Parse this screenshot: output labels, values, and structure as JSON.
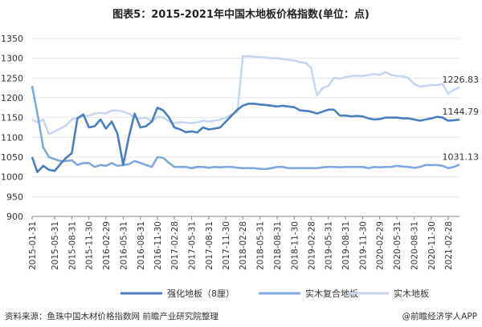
{
  "title": "图表5：2015-2021年中国木地板价格指数(单位：点)",
  "source": "资料来源：鱼珠中国木材价格指数网 前瞻产业研究院整理",
  "credit": "@前瞻经济学人APP",
  "colors": {
    "strong": "#4a7ec0",
    "composite": "#7fa8dc",
    "solid": "#c6d7ef",
    "grid": "#e6e6e6",
    "axis": "#888888"
  },
  "chart_data": {
    "type": "line",
    "title": "图表5：2015-2021年中国木地板价格指数(单位：点)",
    "ylim": [
      900,
      1350
    ],
    "yticks": [
      900,
      950,
      1000,
      1050,
      1100,
      1150,
      1200,
      1250,
      1300,
      1350
    ],
    "xrange": [
      "2015-01-31",
      "2021-04-30"
    ],
    "xticks": [
      "2015-01-31",
      "2015-05-31",
      "2015-08-31",
      "2015-11-30",
      "2016-02-29",
      "2016-05-31",
      "2016-08-31",
      "2016-11-30",
      "2017-02-28",
      "2017-05-31",
      "2017-08-31",
      "2017-11-30",
      "2018-02-28",
      "2018-05-31",
      "2018-08-31",
      "2018-11-30",
      "2019-02-28",
      "2019-05-31",
      "2019-08-31",
      "2019-11-30",
      "2020-02-29",
      "2020-05-31",
      "2020-08-31",
      "2020-11-30",
      "2021-02-28"
    ],
    "legend_position": "bottom",
    "series": [
      {
        "name": "强化地板（8厘）",
        "end_label": "1144.79",
        "points": [
          [
            "2015-01-31",
            1050
          ],
          [
            "2015-02-28",
            1012
          ],
          [
            "2015-03-31",
            1028
          ],
          [
            "2015-04-30",
            1018
          ],
          [
            "2015-05-31",
            1015
          ],
          [
            "2015-06-30",
            1032
          ],
          [
            "2015-07-31",
            1048
          ],
          [
            "2015-08-31",
            1060
          ],
          [
            "2015-09-30",
            1148
          ],
          [
            "2015-10-31",
            1158
          ],
          [
            "2015-11-30",
            1125
          ],
          [
            "2015-12-31",
            1128
          ],
          [
            "2016-01-31",
            1145
          ],
          [
            "2016-02-29",
            1122
          ],
          [
            "2016-03-31",
            1140
          ],
          [
            "2016-04-30",
            1110
          ],
          [
            "2016-05-31",
            1030
          ],
          [
            "2016-06-30",
            1100
          ],
          [
            "2016-07-31",
            1160
          ],
          [
            "2016-08-31",
            1125
          ],
          [
            "2016-09-30",
            1128
          ],
          [
            "2016-10-31",
            1140
          ],
          [
            "2016-11-30",
            1175
          ],
          [
            "2016-12-31",
            1168
          ],
          [
            "2017-01-31",
            1150
          ],
          [
            "2017-02-28",
            1125
          ],
          [
            "2017-03-31",
            1120
          ],
          [
            "2017-04-30",
            1113
          ],
          [
            "2017-05-31",
            1115
          ],
          [
            "2017-06-30",
            1112
          ],
          [
            "2017-07-31",
            1125
          ],
          [
            "2017-08-31",
            1120
          ],
          [
            "2017-09-30",
            1122
          ],
          [
            "2017-10-31",
            1125
          ],
          [
            "2017-11-30",
            1140
          ],
          [
            "2017-12-31",
            1155
          ],
          [
            "2018-01-31",
            1170
          ],
          [
            "2018-02-28",
            1180
          ],
          [
            "2018-03-31",
            1185
          ],
          [
            "2018-04-30",
            1185
          ],
          [
            "2018-05-31",
            1183
          ],
          [
            "2018-06-30",
            1182
          ],
          [
            "2018-07-31",
            1180
          ],
          [
            "2018-08-31",
            1178
          ],
          [
            "2018-09-30",
            1180
          ],
          [
            "2018-10-31",
            1178
          ],
          [
            "2018-11-30",
            1176
          ],
          [
            "2018-12-31",
            1168
          ],
          [
            "2019-01-31",
            1167
          ],
          [
            "2019-02-28",
            1165
          ],
          [
            "2019-03-31",
            1160
          ],
          [
            "2019-04-30",
            1165
          ],
          [
            "2019-05-31",
            1170
          ],
          [
            "2019-06-30",
            1170
          ],
          [
            "2019-07-31",
            1155
          ],
          [
            "2019-08-31",
            1155
          ],
          [
            "2019-09-30",
            1153
          ],
          [
            "2019-10-31",
            1154
          ],
          [
            "2019-11-30",
            1153
          ],
          [
            "2019-12-31",
            1148
          ],
          [
            "2020-01-31",
            1145
          ],
          [
            "2020-02-29",
            1146
          ],
          [
            "2020-03-31",
            1150
          ],
          [
            "2020-04-30",
            1150
          ],
          [
            "2020-05-31",
            1150
          ],
          [
            "2020-06-30",
            1148
          ],
          [
            "2020-07-31",
            1148
          ],
          [
            "2020-08-31",
            1145
          ],
          [
            "2020-09-30",
            1142
          ],
          [
            "2020-10-31",
            1145
          ],
          [
            "2020-11-30",
            1148
          ],
          [
            "2020-12-31",
            1152
          ],
          [
            "2021-01-31",
            1150
          ],
          [
            "2021-02-28",
            1142
          ],
          [
            "2021-03-31",
            1143
          ],
          [
            "2021-04-30",
            1144.79
          ]
        ]
      },
      {
        "name": "实木复合地板",
        "end_label": "1031.13",
        "points": [
          [
            "2015-01-31",
            1230
          ],
          [
            "2015-02-28",
            1160
          ],
          [
            "2015-03-31",
            1075
          ],
          [
            "2015-04-30",
            1050
          ],
          [
            "2015-05-31",
            1045
          ],
          [
            "2015-06-30",
            1040
          ],
          [
            "2015-07-31",
            1040
          ],
          [
            "2015-08-31",
            1042
          ],
          [
            "2015-09-30",
            1030
          ],
          [
            "2015-10-31",
            1035
          ],
          [
            "2015-11-30",
            1035
          ],
          [
            "2015-12-31",
            1025
          ],
          [
            "2016-01-31",
            1030
          ],
          [
            "2016-02-29",
            1028
          ],
          [
            "2016-03-31",
            1035
          ],
          [
            "2016-04-30",
            1028
          ],
          [
            "2016-05-31",
            1030
          ],
          [
            "2016-06-30",
            1032
          ],
          [
            "2016-07-31",
            1040
          ],
          [
            "2016-08-31",
            1035
          ],
          [
            "2016-09-30",
            1030
          ],
          [
            "2016-10-31",
            1025
          ],
          [
            "2016-11-30",
            1050
          ],
          [
            "2016-12-31",
            1048
          ],
          [
            "2017-01-31",
            1035
          ],
          [
            "2017-02-28",
            1025
          ],
          [
            "2017-03-31",
            1025
          ],
          [
            "2017-04-30",
            1025
          ],
          [
            "2017-05-31",
            1022
          ],
          [
            "2017-06-30",
            1025
          ],
          [
            "2017-07-31",
            1025
          ],
          [
            "2017-08-31",
            1023
          ],
          [
            "2017-09-30",
            1025
          ],
          [
            "2017-10-31",
            1024
          ],
          [
            "2017-11-30",
            1025
          ],
          [
            "2017-12-31",
            1025
          ],
          [
            "2018-01-31",
            1023
          ],
          [
            "2018-02-28",
            1022
          ],
          [
            "2018-03-31",
            1022
          ],
          [
            "2018-04-30",
            1022
          ],
          [
            "2018-05-31",
            1020
          ],
          [
            "2018-06-30",
            1020
          ],
          [
            "2018-07-31",
            1022
          ],
          [
            "2018-08-31",
            1025
          ],
          [
            "2018-09-30",
            1025
          ],
          [
            "2018-10-31",
            1022
          ],
          [
            "2018-11-30",
            1022
          ],
          [
            "2018-12-31",
            1022
          ],
          [
            "2019-01-31",
            1022
          ],
          [
            "2019-02-28",
            1022
          ],
          [
            "2019-03-31",
            1022
          ],
          [
            "2019-04-30",
            1024
          ],
          [
            "2019-05-31",
            1025
          ],
          [
            "2019-06-30",
            1025
          ],
          [
            "2019-07-31",
            1024
          ],
          [
            "2019-08-31",
            1025
          ],
          [
            "2019-09-30",
            1025
          ],
          [
            "2019-10-31",
            1025
          ],
          [
            "2019-11-30",
            1025
          ],
          [
            "2019-12-31",
            1022
          ],
          [
            "2020-01-31",
            1025
          ],
          [
            "2020-02-29",
            1024
          ],
          [
            "2020-03-31",
            1025
          ],
          [
            "2020-04-30",
            1025
          ],
          [
            "2020-05-31",
            1028
          ],
          [
            "2020-06-30",
            1026
          ],
          [
            "2020-07-31",
            1025
          ],
          [
            "2020-08-31",
            1023
          ],
          [
            "2020-09-30",
            1025
          ],
          [
            "2020-10-31",
            1030
          ],
          [
            "2020-11-30",
            1030
          ],
          [
            "2020-12-31",
            1030
          ],
          [
            "2021-01-31",
            1028
          ],
          [
            "2021-02-28",
            1022
          ],
          [
            "2021-03-31",
            1025
          ],
          [
            "2021-04-30",
            1031.13
          ]
        ]
      },
      {
        "name": "实木地板",
        "end_label": "1226.83",
        "points": [
          [
            "2015-01-31",
            1145
          ],
          [
            "2015-02-28",
            1138
          ],
          [
            "2015-03-31",
            1145
          ],
          [
            "2015-04-30",
            1108
          ],
          [
            "2015-05-31",
            1115
          ],
          [
            "2015-06-30",
            1122
          ],
          [
            "2015-07-31",
            1130
          ],
          [
            "2015-08-31",
            1145
          ],
          [
            "2015-09-30",
            1150
          ],
          [
            "2015-10-31",
            1152
          ],
          [
            "2015-11-30",
            1155
          ],
          [
            "2015-12-31",
            1160
          ],
          [
            "2016-01-31",
            1162
          ],
          [
            "2016-02-29",
            1160
          ],
          [
            "2016-03-31",
            1168
          ],
          [
            "2016-04-30",
            1168
          ],
          [
            "2016-05-31",
            1165
          ],
          [
            "2016-06-30",
            1160
          ],
          [
            "2016-07-31",
            1150
          ],
          [
            "2016-08-31",
            1148
          ],
          [
            "2016-09-30",
            1150
          ],
          [
            "2016-10-31",
            1140
          ],
          [
            "2016-11-30",
            1152
          ],
          [
            "2016-12-31",
            1150
          ],
          [
            "2017-01-31",
            1140
          ],
          [
            "2017-02-28",
            1136
          ],
          [
            "2017-03-31",
            1138
          ],
          [
            "2017-04-30",
            1137
          ],
          [
            "2017-05-31",
            1136
          ],
          [
            "2017-06-30",
            1138
          ],
          [
            "2017-07-31",
            1142
          ],
          [
            "2017-08-31",
            1140
          ],
          [
            "2017-09-30",
            1142
          ],
          [
            "2017-10-31",
            1145
          ],
          [
            "2017-11-30",
            1150
          ],
          [
            "2017-12-31",
            1158
          ],
          [
            "2018-01-31",
            1165
          ],
          [
            "2018-02-28",
            1305
          ],
          [
            "2018-03-31",
            1305
          ],
          [
            "2018-04-30",
            1304
          ],
          [
            "2018-05-31",
            1303
          ],
          [
            "2018-06-30",
            1302
          ],
          [
            "2018-07-31",
            1300
          ],
          [
            "2018-08-31",
            1300
          ],
          [
            "2018-09-30",
            1298
          ],
          [
            "2018-10-31",
            1296
          ],
          [
            "2018-11-30",
            1294
          ],
          [
            "2018-12-31",
            1290
          ],
          [
            "2019-01-31",
            1288
          ],
          [
            "2019-02-28",
            1275
          ],
          [
            "2019-03-31",
            1205
          ],
          [
            "2019-04-30",
            1225
          ],
          [
            "2019-05-31",
            1230
          ],
          [
            "2019-06-30",
            1250
          ],
          [
            "2019-07-31",
            1248
          ],
          [
            "2019-08-31",
            1252
          ],
          [
            "2019-09-30",
            1255
          ],
          [
            "2019-10-31",
            1256
          ],
          [
            "2019-11-30",
            1255
          ],
          [
            "2019-12-31",
            1258
          ],
          [
            "2020-01-31",
            1260
          ],
          [
            "2020-02-29",
            1258
          ],
          [
            "2020-03-31",
            1265
          ],
          [
            "2020-04-30",
            1258
          ],
          [
            "2020-05-31",
            1255
          ],
          [
            "2020-06-30",
            1255
          ],
          [
            "2020-07-31",
            1250
          ],
          [
            "2020-08-31",
            1235
          ],
          [
            "2020-09-30",
            1228
          ],
          [
            "2020-10-31",
            1230
          ],
          [
            "2020-11-30",
            1232
          ],
          [
            "2020-12-31",
            1232
          ],
          [
            "2021-01-31",
            1235
          ],
          [
            "2021-02-28",
            1210
          ],
          [
            "2021-03-31",
            1220
          ],
          [
            "2021-04-30",
            1226.83
          ]
        ]
      }
    ]
  }
}
